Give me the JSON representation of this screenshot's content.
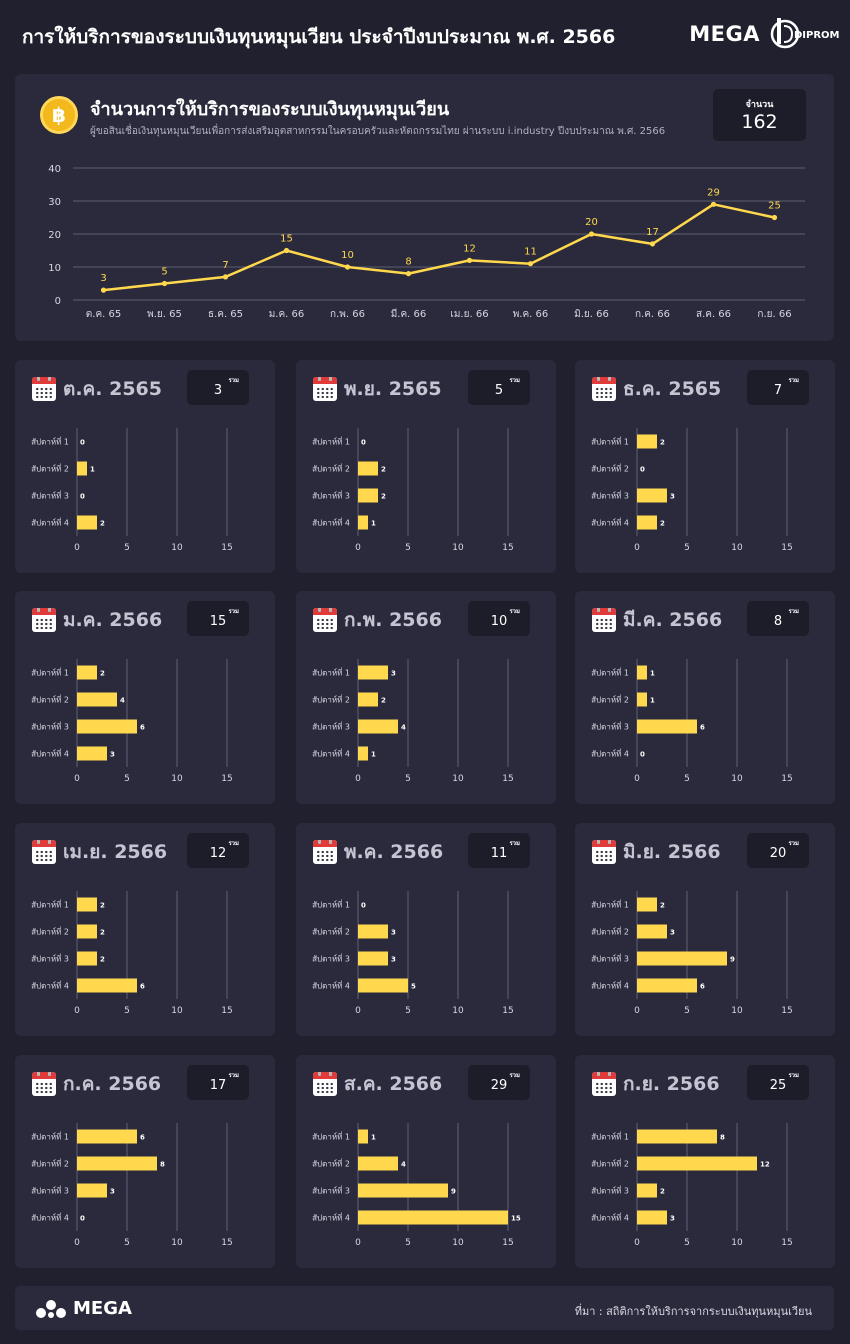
{
  "header": {
    "title": "การให้บริการของระบบเงินทุนหมุนเวียน ประจำปีงบประมาณ พ.ศ. 2566",
    "brand": "MEGA",
    "partner_logo": "DIPROM",
    "partner_icon": "dip-logo"
  },
  "summary": {
    "icon": "baht-coin-icon",
    "title": "จำนวนการให้บริการของระบบเงินทุนหมุนเวียน",
    "subtitle": "ผู้ขอสินเชื่อเงินทุนหมุนเวียนเพื่อการส่งเสริมอุตสาหกรรมในครอบครัวและหัตถกรรมไทย ผ่านระบบ i.industry ปีงบประมาณ พ.ศ. 2566",
    "total_label": "จำนวน",
    "total_value": "162"
  },
  "colors": {
    "background": "#20202e",
    "card": "#2a2a3c",
    "box": "#1d1d2a",
    "accent": "#ffd84e",
    "grid": "#6e6f80",
    "text_muted": "#c4c5d2"
  },
  "month_card_common": {
    "total_label": "รวม",
    "icon": "calendar-icon"
  },
  "chart_data": [
    {
      "type": "line",
      "categories": [
        "ต.ค. 65",
        "พ.ย. 65",
        "ธ.ค. 65",
        "ม.ค. 66",
        "ก.พ. 66",
        "มี.ค. 66",
        "เม.ย. 66",
        "พ.ค. 66",
        "มิ.ย. 66",
        "ก.ค. 66",
        "ส.ค. 66",
        "ก.ย. 66"
      ],
      "values": [
        3,
        5,
        7,
        15,
        10,
        8,
        12,
        11,
        20,
        17,
        29,
        25
      ],
      "ylim": [
        0,
        40
      ],
      "yticks": [
        0,
        10,
        20,
        30,
        40
      ],
      "grid": true
    },
    {
      "type": "bar",
      "orientation": "horizontal",
      "title": "ต.ค. 2565",
      "total": "3",
      "categories": [
        "สัปดาห์ที่ 1",
        "สัปดาห์ที่ 2",
        "สัปดาห์ที่ 3",
        "สัปดาห์ที่ 4"
      ],
      "values": [
        0,
        1,
        0,
        2
      ],
      "xlim": [
        0,
        15
      ],
      "xticks": [
        0,
        5,
        10,
        15
      ]
    },
    {
      "type": "bar",
      "orientation": "horizontal",
      "title": "พ.ย. 2565",
      "total": "5",
      "categories": [
        "สัปดาห์ที่ 1",
        "สัปดาห์ที่ 2",
        "สัปดาห์ที่ 3",
        "สัปดาห์ที่ 4"
      ],
      "values": [
        0,
        2,
        2,
        1
      ],
      "xlim": [
        0,
        15
      ],
      "xticks": [
        0,
        5,
        10,
        15
      ]
    },
    {
      "type": "bar",
      "orientation": "horizontal",
      "title": "ธ.ค. 2565",
      "total": "7",
      "categories": [
        "สัปดาห์ที่ 1",
        "สัปดาห์ที่ 2",
        "สัปดาห์ที่ 3",
        "สัปดาห์ที่ 4"
      ],
      "values": [
        2,
        0,
        3,
        2
      ],
      "xlim": [
        0,
        15
      ],
      "xticks": [
        0,
        5,
        10,
        15
      ]
    },
    {
      "type": "bar",
      "orientation": "horizontal",
      "title": "ม.ค. 2566",
      "total": "15",
      "categories": [
        "สัปดาห์ที่ 1",
        "สัปดาห์ที่ 2",
        "สัปดาห์ที่ 3",
        "สัปดาห์ที่ 4"
      ],
      "values": [
        2,
        4,
        6,
        3
      ],
      "xlim": [
        0,
        15
      ],
      "xticks": [
        0,
        5,
        10,
        15
      ]
    },
    {
      "type": "bar",
      "orientation": "horizontal",
      "title": "ก.พ. 2566",
      "total": "10",
      "categories": [
        "สัปดาห์ที่ 1",
        "สัปดาห์ที่ 2",
        "สัปดาห์ที่ 3",
        "สัปดาห์ที่ 4"
      ],
      "values": [
        3,
        2,
        4,
        1
      ],
      "xlim": [
        0,
        15
      ],
      "xticks": [
        0,
        5,
        10,
        15
      ]
    },
    {
      "type": "bar",
      "orientation": "horizontal",
      "title": "มี.ค. 2566",
      "total": "8",
      "categories": [
        "สัปดาห์ที่ 1",
        "สัปดาห์ที่ 2",
        "สัปดาห์ที่ 3",
        "สัปดาห์ที่ 4"
      ],
      "values": [
        1,
        1,
        6,
        0
      ],
      "xlim": [
        0,
        15
      ],
      "xticks": [
        0,
        5,
        10,
        15
      ]
    },
    {
      "type": "bar",
      "orientation": "horizontal",
      "title": "เม.ย. 2566",
      "total": "12",
      "categories": [
        "สัปดาห์ที่ 1",
        "สัปดาห์ที่ 2",
        "สัปดาห์ที่ 3",
        "สัปดาห์ที่ 4"
      ],
      "values": [
        2,
        2,
        2,
        6
      ],
      "xlim": [
        0,
        15
      ],
      "xticks": [
        0,
        5,
        10,
        15
      ]
    },
    {
      "type": "bar",
      "orientation": "horizontal",
      "title": "พ.ค. 2566",
      "total": "11",
      "categories": [
        "สัปดาห์ที่ 1",
        "สัปดาห์ที่ 2",
        "สัปดาห์ที่ 3",
        "สัปดาห์ที่ 4"
      ],
      "values": [
        0,
        3,
        3,
        5
      ],
      "xlim": [
        0,
        15
      ],
      "xticks": [
        0,
        5,
        10,
        15
      ]
    },
    {
      "type": "bar",
      "orientation": "horizontal",
      "title": "มิ.ย. 2566",
      "total": "20",
      "categories": [
        "สัปดาห์ที่ 1",
        "สัปดาห์ที่ 2",
        "สัปดาห์ที่ 3",
        "สัปดาห์ที่ 4"
      ],
      "values": [
        2,
        3,
        9,
        6
      ],
      "xlim": [
        0,
        15
      ],
      "xticks": [
        0,
        5,
        10,
        15
      ]
    },
    {
      "type": "bar",
      "orientation": "horizontal",
      "title": "ก.ค. 2566",
      "total": "17",
      "categories": [
        "สัปดาห์ที่ 1",
        "สัปดาห์ที่ 2",
        "สัปดาห์ที่ 3",
        "สัปดาห์ที่ 4"
      ],
      "values": [
        6,
        8,
        3,
        0
      ],
      "xlim": [
        0,
        15
      ],
      "xticks": [
        0,
        5,
        10,
        15
      ]
    },
    {
      "type": "bar",
      "orientation": "horizontal",
      "title": "ส.ค. 2566",
      "total": "29",
      "categories": [
        "สัปดาห์ที่ 1",
        "สัปดาห์ที่ 2",
        "สัปดาห์ที่ 3",
        "สัปดาห์ที่ 4"
      ],
      "values": [
        1,
        4,
        9,
        15
      ],
      "xlim": [
        0,
        15
      ],
      "xticks": [
        0,
        5,
        10,
        15
      ]
    },
    {
      "type": "bar",
      "orientation": "horizontal",
      "title": "ก.ย. 2566",
      "total": "25",
      "categories": [
        "สัปดาห์ที่ 1",
        "สัปดาห์ที่ 2",
        "สัปดาห์ที่ 3",
        "สัปดาห์ที่ 4"
      ],
      "values": [
        8,
        12,
        2,
        3
      ],
      "xlim": [
        0,
        15
      ],
      "xticks": [
        0,
        5,
        10,
        15
      ]
    }
  ],
  "footer": {
    "brand": "MEGA",
    "brand_icon": "mega-logo-icon",
    "source": "ที่มา : สถิติการให้บริการจากระบบเงินทุนหมุนเวียน"
  }
}
